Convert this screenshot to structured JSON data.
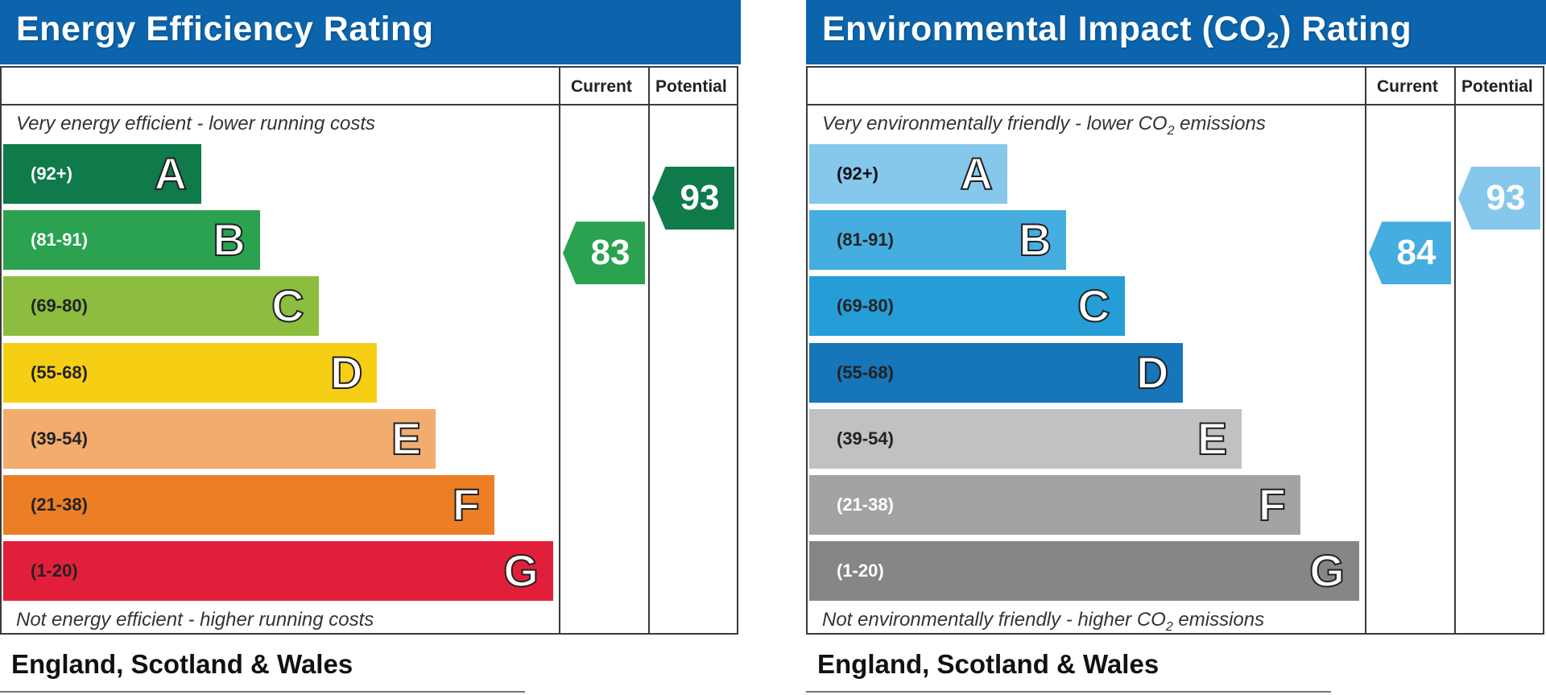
{
  "chart_data": [
    {
      "type": "bar",
      "title": "Energy Efficiency Rating",
      "column_headers": [
        "Current",
        "Potential"
      ],
      "top_note": "Very energy efficient - lower running costs",
      "bottom_note": "Not energy efficient - higher running costs",
      "footer": "England, Scotland & Wales",
      "bands": [
        {
          "range": "(92+)",
          "letter": "A",
          "color": "#0f7a4a",
          "text_color": "#ffffff",
          "min": 92,
          "max": 100
        },
        {
          "range": "(81-91)",
          "letter": "B",
          "color": "#2aa24f",
          "text_color": "#ffffff",
          "min": 81,
          "max": 91
        },
        {
          "range": "(69-80)",
          "letter": "C",
          "color": "#8cbd3f",
          "text_color": "#222222",
          "min": 69,
          "max": 80
        },
        {
          "range": "(55-68)",
          "letter": "D",
          "color": "#f6cf15",
          "text_color": "#222222",
          "min": 55,
          "max": 68
        },
        {
          "range": "(39-54)",
          "letter": "E",
          "color": "#f1ac6e",
          "text_color": "#222222",
          "min": 39,
          "max": 54
        },
        {
          "range": "(21-38)",
          "letter": "F",
          "color": "#ec7f25",
          "text_color": "#222222",
          "min": 21,
          "max": 38
        },
        {
          "range": "(1-20)",
          "letter": "G",
          "color": "#e21f3b",
          "text_color": "#222222",
          "min": 1,
          "max": 20
        }
      ],
      "current": {
        "value": "83",
        "band": "B",
        "color": "#2aa24f"
      },
      "potential": {
        "value": "93",
        "band": "A",
        "color": "#0f7a4a"
      }
    },
    {
      "type": "bar",
      "title_main": "Environmental Impact (CO",
      "title_sub": "2",
      "title_end": ") Rating",
      "column_headers": [
        "Current",
        "Potential"
      ],
      "top_note_main": "Very environmentally friendly - lower CO",
      "top_note_sub": "2",
      "top_note_end": " emissions",
      "bottom_note_main": "Not environmentally friendly - higher CO",
      "bottom_note_sub": "2",
      "bottom_note_end": " emissions",
      "footer": "England, Scotland & Wales",
      "bands": [
        {
          "range": "(92+)",
          "letter": "A",
          "color": "#86c8ec",
          "text_color": "#111111",
          "min": 92,
          "max": 100
        },
        {
          "range": "(81-91)",
          "letter": "B",
          "color": "#45ade0",
          "text_color": "#222222",
          "min": 81,
          "max": 91
        },
        {
          "range": "(69-80)",
          "letter": "C",
          "color": "#259dd6",
          "text_color": "#222222",
          "min": 69,
          "max": 80
        },
        {
          "range": "(55-68)",
          "letter": "D",
          "color": "#1775b9",
          "text_color": "#222222",
          "min": 55,
          "max": 68
        },
        {
          "range": "(39-54)",
          "letter": "E",
          "color": "#c1c1c1",
          "text_color": "#222222",
          "min": 39,
          "max": 54
        },
        {
          "range": "(21-38)",
          "letter": "F",
          "color": "#a3a3a3",
          "text_color": "#ffffff",
          "min": 21,
          "max": 38
        },
        {
          "range": "(1-20)",
          "letter": "G",
          "color": "#868686",
          "text_color": "#ffffff",
          "min": 1,
          "max": 20
        }
      ],
      "current": {
        "value": "84",
        "band": "B",
        "color": "#45ade0"
      },
      "potential": {
        "value": "93",
        "band": "A",
        "color": "#86c8ec"
      }
    }
  ]
}
